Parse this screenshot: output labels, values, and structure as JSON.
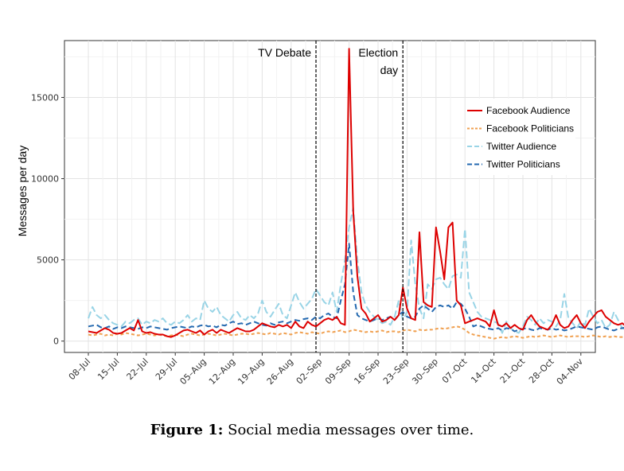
{
  "caption": {
    "label": "Figure 1:",
    "text": "Social media messages over time."
  },
  "chart_data": {
    "type": "line",
    "title": "",
    "xlabel": "",
    "ylabel": "Messages per day",
    "ylim": [
      -700,
      18500
    ],
    "yticks": [
      0,
      5000,
      10000,
      15000
    ],
    "x_start": "2013-07-08",
    "x_ticks": [
      "08–Jul",
      "15–Jul",
      "22–Jul",
      "29–Jul",
      "05–Aug",
      "12–Aug",
      "19–Aug",
      "26–Aug",
      "02–Sep",
      "09–Sep",
      "16–Sep",
      "23–Sep",
      "30–Sep",
      "07–Oct",
      "14–Oct",
      "21–Oct",
      "28–Oct",
      "04–Nov"
    ],
    "grid": true,
    "legend_position": "top-right",
    "annotations": [
      {
        "label": "TV Debate",
        "date": "2013-09-01"
      },
      {
        "label_lines": [
          "Election",
          "day"
        ],
        "date": "2013-09-22"
      }
    ],
    "series": [
      {
        "name": "Facebook Audience",
        "color": "#dd0000",
        "dash": "solid",
        "values": [
          600,
          550,
          500,
          650,
          800,
          700,
          500,
          450,
          500,
          650,
          800,
          650,
          1300,
          600,
          500,
          550,
          450,
          400,
          400,
          300,
          250,
          350,
          500,
          650,
          700,
          600,
          500,
          650,
          400,
          600,
          700,
          500,
          700,
          600,
          500,
          650,
          800,
          700,
          600,
          600,
          700,
          900,
          1100,
          1000,
          900,
          850,
          1000,
          900,
          1000,
          800,
          1200,
          900,
          800,
          1200,
          1000,
          900,
          1100,
          1300,
          1400,
          1300,
          1500,
          1100,
          1000,
          18000,
          8000,
          4000,
          2000,
          1700,
          1200,
          1400,
          1600,
          1200,
          1300,
          1500,
          1300,
          1600,
          3300,
          2000,
          1400,
          1300,
          6700,
          2400,
          2200,
          2100,
          7000,
          5500,
          3800,
          7000,
          7300,
          2500,
          2200,
          1100,
          1200,
          1300,
          1400,
          1300,
          1200,
          900,
          1900,
          1000,
          900,
          1100,
          800,
          1000,
          800,
          700,
          1300,
          1600,
          1200,
          900,
          800,
          700,
          1000,
          1600,
          1000,
          800,
          900,
          1300,
          1600,
          1100,
          800,
          1200,
          1500,
          1800,
          1900,
          1500,
          1300,
          1100,
          1000,
          1100,
          900,
          800,
          750,
          700,
          500,
          350
        ]
      },
      {
        "name": "Facebook Politicians",
        "color": "#f0a050",
        "dash": "4,3",
        "values": [
          400,
          350,
          400,
          450,
          350,
          400,
          350,
          450,
          400,
          500,
          450,
          400,
          350,
          400,
          450,
          400,
          350,
          400,
          350,
          300,
          350,
          400,
          350,
          300,
          400,
          450,
          400,
          350,
          400,
          450,
          400,
          350,
          400,
          450,
          400,
          350,
          400,
          450,
          450,
          400,
          450,
          500,
          450,
          400,
          500,
          450,
          400,
          500,
          450,
          400,
          500,
          550,
          500,
          450,
          550,
          500,
          450,
          550,
          600,
          550,
          600,
          650,
          550,
          600,
          700,
          650,
          600,
          550,
          600,
          550,
          600,
          650,
          550,
          600,
          600,
          550,
          650,
          700,
          650,
          600,
          700,
          650,
          700,
          700,
          750,
          800,
          750,
          800,
          850,
          900,
          850,
          700,
          500,
          400,
          350,
          300,
          250,
          200,
          150,
          200,
          250,
          200,
          250,
          300,
          250,
          200,
          250,
          300,
          250,
          300,
          350,
          300,
          250,
          300,
          350,
          300,
          250,
          300,
          300,
          300,
          250,
          300,
          350,
          300,
          250,
          300,
          250,
          300,
          250,
          250,
          250,
          300,
          250,
          200,
          -50,
          0
        ]
      },
      {
        "name": "Twitter Audience",
        "color": "#99d4e6",
        "dash": "9,4",
        "values": [
          1400,
          2100,
          1600,
          1400,
          1600,
          1300,
          1100,
          1000,
          900,
          1200,
          1100,
          1300,
          1400,
          1000,
          1200,
          1100,
          1300,
          1200,
          1400,
          1100,
          1000,
          1200,
          1100,
          1300,
          1600,
          1200,
          1400,
          1300,
          2500,
          2000,
          1800,
          2100,
          1600,
          1400,
          1200,
          1600,
          1800,
          1400,
          1300,
          1600,
          1400,
          1700,
          2500,
          1800,
          1500,
          1900,
          2300,
          1600,
          1400,
          2200,
          3000,
          2400,
          2000,
          2300,
          2600,
          3200,
          2800,
          2400,
          2200,
          3000,
          1800,
          3500,
          5000,
          7000,
          8200,
          5000,
          3000,
          2200,
          1800,
          1500,
          1300,
          1100,
          1200,
          1000,
          1500,
          2500,
          1300,
          1800,
          6200,
          3500,
          2000,
          1400,
          3500,
          3200,
          3800,
          3900,
          3500,
          3200,
          4000,
          4100,
          3900,
          6900,
          3000,
          2400,
          1800,
          1500,
          1400,
          1300,
          1200,
          1100,
          500,
          1200,
          800,
          600,
          500,
          900,
          1500,
          1300,
          1000,
          1400,
          1100,
          1300,
          1200,
          900,
          1300,
          2900,
          1400,
          1100,
          800,
          1200,
          1000,
          2000,
          1500,
          1100,
          1300,
          800,
          1000,
          1800,
          1300,
          800,
          700,
          1100,
          3200,
          3200,
          1200,
          500
        ]
      },
      {
        "name": "Twitter Politicians",
        "color": "#2469b0",
        "dash": "7,4",
        "values": [
          900,
          950,
          1000,
          850,
          800,
          900,
          750,
          850,
          800,
          900,
          850,
          800,
          750,
          850,
          800,
          900,
          850,
          800,
          750,
          700,
          800,
          850,
          900,
          850,
          800,
          900,
          850,
          950,
          1000,
          900,
          950,
          850,
          1000,
          950,
          1100,
          1200,
          1050,
          1100,
          1000,
          1100,
          1200,
          1100,
          1000,
          950,
          1100,
          1000,
          1150,
          1200,
          1100,
          1200,
          1300,
          1250,
          1350,
          1400,
          1300,
          1500,
          1400,
          1600,
          1700,
          1500,
          1400,
          2500,
          3500,
          6000,
          3000,
          1600,
          1400,
          1300,
          1200,
          1300,
          1400,
          1300,
          1400,
          1500,
          1300,
          1600,
          1800,
          1500,
          1400,
          1500,
          2000,
          2200,
          2000,
          1800,
          2100,
          2200,
          2100,
          2200,
          2000,
          2400,
          2300,
          2000,
          1500,
          900,
          1000,
          900,
          800,
          750,
          700,
          800,
          650,
          800,
          750,
          600,
          700,
          750,
          800,
          700,
          650,
          800,
          750,
          700,
          800,
          700,
          750,
          650,
          700,
          800,
          900,
          850,
          800,
          750,
          700,
          850,
          900,
          800,
          700,
          650,
          750,
          800,
          850,
          800,
          750,
          700,
          600,
          750,
          700,
          600,
          500
        ]
      }
    ]
  }
}
